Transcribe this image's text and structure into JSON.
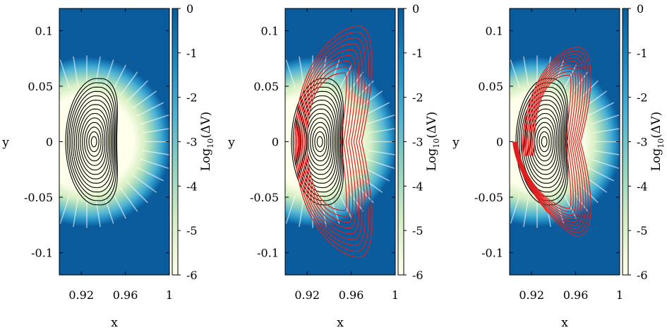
{
  "figure": {
    "panel_count": 3
  },
  "chart_data": [
    {
      "type": "contour",
      "panel": "left",
      "xlabel": "x",
      "ylabel": "y",
      "xlim": [
        0.9,
        1.0
      ],
      "ylim": [
        -0.12,
        0.12
      ],
      "x_ticks": [
        "0.92",
        "0.96",
        "1"
      ],
      "x_tick_values": [
        0.92,
        0.96,
        1.0
      ],
      "y_ticks": [
        "0.1",
        "0.05",
        "0",
        "-0.05",
        "-0.1"
      ],
      "y_tick_values": [
        0.1,
        0.05,
        0,
        -0.05,
        -0.1
      ],
      "colorbar": {
        "label_prefix": "Log",
        "label_sub": "10",
        "label_suffix": "(ΔV)",
        "range": [
          -6,
          0
        ],
        "ticks": [
          "0",
          "-1",
          "-2",
          "-3",
          "-4",
          "-5",
          "-6"
        ],
        "tick_values": [
          0,
          -1,
          -2,
          -3,
          -4,
          -5,
          -6
        ],
        "colors": [
          "#ffffeb",
          "#d7efc4",
          "#93d3c0",
          "#4eb2d3",
          "#1e87bf",
          "#0a5c9c"
        ]
      },
      "heatmap_center": [
        0.925,
        0.0
      ],
      "contours": {
        "color": "#000000",
        "center": [
          0.9315,
          0.0
        ],
        "levels": 14,
        "max_half_width_x": 0.028,
        "max_half_height_y": 0.057
      },
      "red_orbits": null
    },
    {
      "type": "contour",
      "panel": "middle",
      "xlabel": "x",
      "ylabel": "y",
      "xlim": [
        0.9,
        1.0
      ],
      "ylim": [
        -0.12,
        0.12
      ],
      "x_ticks": [
        "0.92",
        "0.96",
        "1"
      ],
      "x_tick_values": [
        0.92,
        0.96,
        1.0
      ],
      "y_ticks": [
        "0.1",
        "0.05",
        "0",
        "-0.05",
        "-0.1"
      ],
      "y_tick_values": [
        0.1,
        0.05,
        0,
        -0.05,
        -0.1
      ],
      "colorbar": {
        "label_prefix": "Log",
        "label_sub": "10",
        "label_suffix": "(ΔV)",
        "range": [
          -6,
          0
        ],
        "ticks": [
          "0",
          "-1",
          "-2",
          "-3",
          "-4",
          "-5",
          "-6"
        ],
        "tick_values": [
          0,
          -1,
          -2,
          -3,
          -4,
          -5,
          -6
        ],
        "colors": [
          "#ffffeb",
          "#d7efc4",
          "#93d3c0",
          "#4eb2d3",
          "#1e87bf",
          "#0a5c9c"
        ]
      },
      "heatmap_center": [
        0.925,
        0.0
      ],
      "contours": {
        "color": "#000000",
        "center": [
          0.9315,
          0.0
        ],
        "levels": 14,
        "max_half_width_x": 0.028,
        "max_half_height_y": 0.057
      },
      "red_orbits": {
        "color": "#dd1f1f",
        "count": 9,
        "open": false,
        "x_left_range": [
          0.909,
          0.92
        ],
        "x_right_range": [
          0.981,
          0.955
        ],
        "y_top_range": [
          0.104,
          0.062
        ],
        "y_top_x_range": [
          0.967,
          0.954
        ]
      }
    },
    {
      "type": "contour",
      "panel": "right",
      "xlabel": "x",
      "ylabel": "y",
      "xlim": [
        0.9,
        1.0
      ],
      "ylim": [
        -0.12,
        0.12
      ],
      "x_ticks": [
        "0.92",
        "0.96",
        "1"
      ],
      "x_tick_values": [
        0.92,
        0.96,
        1.0
      ],
      "y_ticks": [
        "0.1",
        "0.05",
        "0",
        "-0.05",
        "-0.1"
      ],
      "y_tick_values": [
        0.1,
        0.05,
        0,
        -0.05,
        -0.1
      ],
      "colorbar": {
        "label_prefix": "Log",
        "label_sub": "10",
        "label_suffix": "(ΔV)",
        "range": [
          -6,
          0
        ],
        "ticks": [
          "0",
          "-1",
          "-2",
          "-3",
          "-4",
          "-5",
          "-6"
        ],
        "tick_values": [
          0,
          -1,
          -2,
          -3,
          -4,
          -5,
          -6
        ],
        "colors": [
          "#ffffeb",
          "#d7efc4",
          "#93d3c0",
          "#4eb2d3",
          "#1e87bf",
          "#0a5c9c"
        ]
      },
      "heatmap_center": [
        0.925,
        0.0
      ],
      "contours": {
        "color": "#000000",
        "center": [
          0.9315,
          0.0
        ],
        "levels": 14,
        "max_half_width_x": 0.028,
        "max_half_height_y": 0.057
      },
      "red_orbits": {
        "color": "#dd1f1f",
        "count": 9,
        "open": true,
        "x_left_range": [
          0.909,
          0.92
        ],
        "x_right_range": [
          0.976,
          0.955
        ],
        "y_top_range": [
          0.085,
          0.06
        ],
        "y_top_x_range": [
          0.962,
          0.954
        ]
      }
    }
  ]
}
